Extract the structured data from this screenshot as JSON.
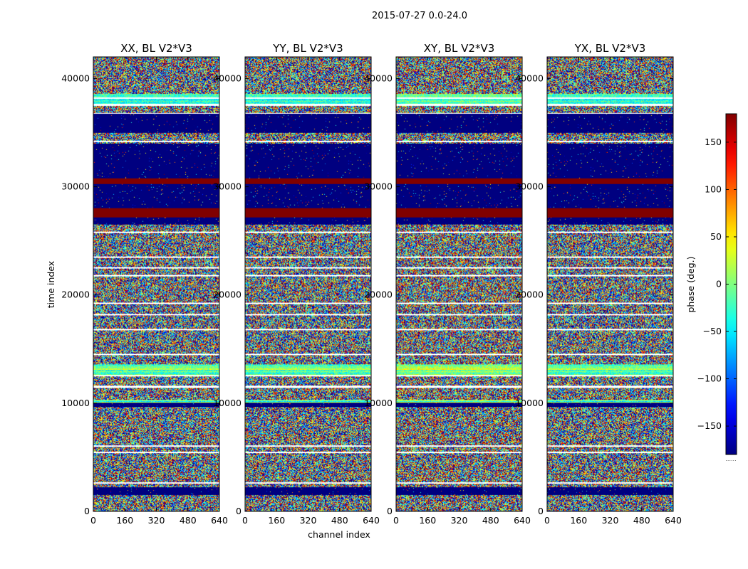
{
  "chart_data": {
    "type": "heatmap",
    "title": "2015-07-27 0.0-24.0",
    "xlabel": "channel index",
    "ylabel": "time index",
    "xlim": [
      0,
      640
    ],
    "ylim": [
      0,
      42000
    ],
    "x_ticks": [
      "0",
      "160",
      "320",
      "480",
      "640"
    ],
    "y_ticks": [
      "0",
      "10000",
      "20000",
      "30000",
      "40000"
    ],
    "panels": [
      {
        "title": "XX, BL V2*V3"
      },
      {
        "title": "YY, BL V2*V3"
      },
      {
        "title": "XY, BL V2*V3"
      },
      {
        "title": "YX, BL V2*V3"
      }
    ],
    "colorbar": {
      "label": "phase (deg.)",
      "range": [
        -180,
        180
      ],
      "ticks": [
        "150",
        "100",
        "50",
        "0",
        "−50",
        "−100",
        "−150"
      ],
      "tick_values": [
        150,
        100,
        50,
        0,
        -50,
        -100,
        -150
      ],
      "footer": "......"
    },
    "band_structure": {
      "blue_blocks": [
        [
          26500,
          34000
        ],
        [
          35000,
          36800
        ],
        [
          1500,
          2200
        ],
        [
          9600,
          10000
        ]
      ],
      "red_blocks": [
        [
          27200,
          28000
        ],
        [
          30300,
          30800
        ]
      ],
      "thin_white_lines": [
        1800,
        2600,
        5400,
        6000,
        9700,
        11500,
        12500,
        14500,
        16800,
        18200,
        19200,
        21800,
        22500,
        23500,
        25800,
        34200,
        36800,
        37600,
        38200
      ]
    }
  }
}
